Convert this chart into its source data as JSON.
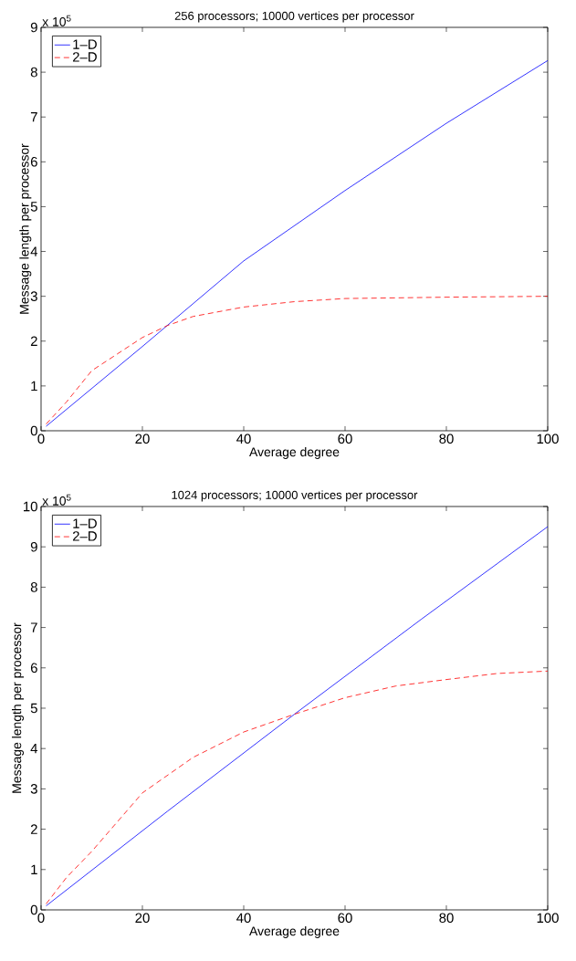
{
  "chart_data": [
    {
      "type": "line",
      "title": "256 processors; 10000 vertices per processor",
      "xlabel": "Average degree",
      "ylabel": "Message length per processor",
      "annotations": [
        "x 10$^{5}$"
      ],
      "xlim": [
        0,
        100
      ],
      "ylim": [
        0,
        9
      ],
      "xticks": [
        0,
        20,
        40,
        60,
        80,
        100
      ],
      "yticks": [
        0,
        1,
        2,
        3,
        4,
        5,
        6,
        7,
        8,
        9
      ],
      "legend": "top left",
      "grid": false,
      "series": [
        {
          "name": "1–D",
          "color": "#0000ff",
          "line_style": "solid",
          "x": [
            1,
            20,
            40,
            60,
            80,
            100
          ],
          "values": [
            0.1,
            1.88,
            3.79,
            5.36,
            6.86,
            8.26
          ]
        },
        {
          "name": "2–D",
          "color": "#ff0000",
          "line_style": "dashed",
          "x": [
            1,
            5,
            10,
            20,
            25,
            30,
            40,
            50,
            60,
            80,
            100
          ],
          "values": [
            0.15,
            0.64,
            1.34,
            2.08,
            2.35,
            2.55,
            2.76,
            2.88,
            2.95,
            2.98,
            3.0
          ]
        }
      ]
    },
    {
      "type": "line",
      "title": "1024 processors; 10000 vertices per processor",
      "xlabel": "Average degree",
      "ylabel": "Message length per processor",
      "annotations": [
        "x 10$^{5}$"
      ],
      "xlim": [
        0,
        100
      ],
      "ylim": [
        0,
        10
      ],
      "xticks": [
        0,
        20,
        40,
        60,
        80,
        100
      ],
      "yticks": [
        0,
        1,
        2,
        3,
        4,
        5,
        6,
        7,
        8,
        9,
        10
      ],
      "legend": "top left",
      "grid": false,
      "series": [
        {
          "name": "1–D",
          "color": "#0000ff",
          "line_style": "solid",
          "x": [
            1,
            25,
            50,
            75,
            100
          ],
          "values": [
            0.1,
            2.45,
            4.85,
            7.2,
            9.5
          ]
        },
        {
          "name": "2–D",
          "color": "#ff0000",
          "line_style": "dashed",
          "x": [
            1,
            5,
            10,
            20,
            30,
            40,
            50,
            60,
            70,
            80,
            90,
            100
          ],
          "values": [
            0.15,
            0.8,
            1.45,
            2.9,
            3.78,
            4.41,
            4.85,
            5.26,
            5.55,
            5.71,
            5.86,
            5.92
          ]
        }
      ]
    }
  ]
}
